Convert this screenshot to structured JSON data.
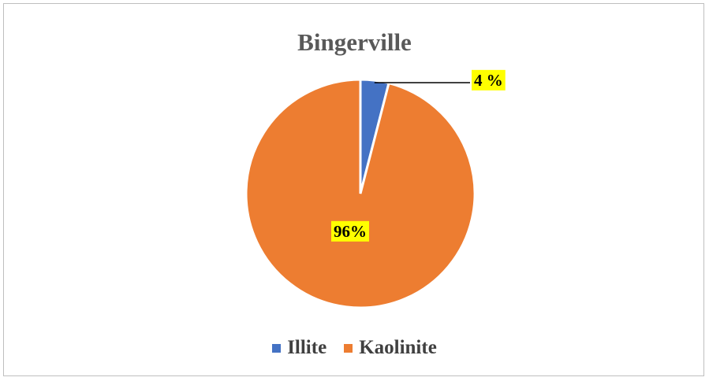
{
  "chart_data": {
    "type": "pie",
    "title": "Bingerville",
    "categories": [
      "Illite",
      "Kaolinite"
    ],
    "values": [
      4,
      96
    ],
    "data_labels": [
      "4 %",
      "96%"
    ],
    "colors": [
      "#4472c4",
      "#ed7d31"
    ],
    "label_background": "#ffff00",
    "legend_position": "bottom"
  }
}
